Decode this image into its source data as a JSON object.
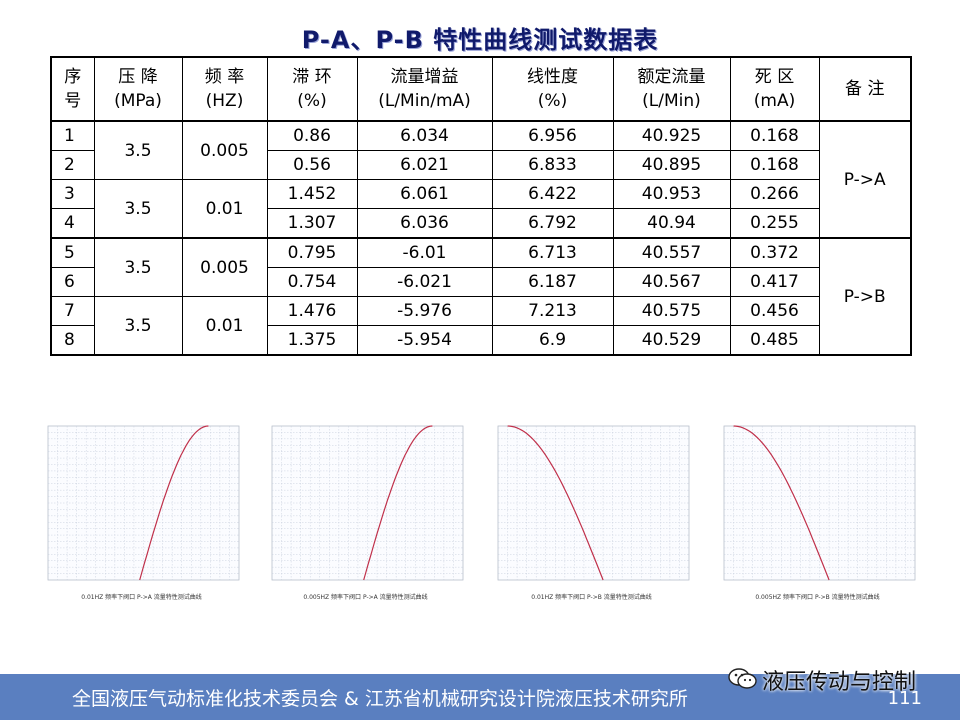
{
  "title": "P-A、P-B 特性曲线测试数据表",
  "table": {
    "headers": [
      {
        "line1": "序",
        "line2": "号"
      },
      {
        "line1": "压 降",
        "line2": "(MPa)"
      },
      {
        "line1": "频 率",
        "line2": "(HZ)"
      },
      {
        "line1": "滞 环",
        "line2": "(%)"
      },
      {
        "line1": "流量增益",
        "line2": "(L/Min/mA)"
      },
      {
        "line1": "线性度",
        "line2": "(%)"
      },
      {
        "line1": "额定流量",
        "line2": "(L/Min)"
      },
      {
        "line1": "死 区",
        "line2": "(mA)"
      },
      {
        "line1": "备 注",
        "line2": ""
      }
    ],
    "groups": [
      {
        "pressure": "3.5",
        "frequency": "0.005"
      },
      {
        "pressure": "3.5",
        "frequency": "0.01"
      },
      {
        "pressure": "3.5",
        "frequency": "0.005"
      },
      {
        "pressure": "3.5",
        "frequency": "0.01"
      }
    ],
    "remarks": [
      "P->A",
      "P->B"
    ],
    "rows": [
      {
        "seq": "1",
        "hysteresis": "0.86",
        "gain": "6.034",
        "linearity": "6.956",
        "rated_flow": "40.925",
        "dead_zone": "0.168"
      },
      {
        "seq": "2",
        "hysteresis": "0.56",
        "gain": "6.021",
        "linearity": "6.833",
        "rated_flow": "40.895",
        "dead_zone": "0.168"
      },
      {
        "seq": "3",
        "hysteresis": "1.452",
        "gain": "6.061",
        "linearity": "6.422",
        "rated_flow": "40.953",
        "dead_zone": "0.266"
      },
      {
        "seq": "4",
        "hysteresis": "1.307",
        "gain": "6.036",
        "linearity": "6.792",
        "rated_flow": "40.94",
        "dead_zone": "0.255"
      },
      {
        "seq": "5",
        "hysteresis": "0.795",
        "gain": "-6.01",
        "linearity": "6.713",
        "rated_flow": "40.557",
        "dead_zone": "0.372"
      },
      {
        "seq": "6",
        "hysteresis": "0.754",
        "gain": "-6.021",
        "linearity": "6.187",
        "rated_flow": "40.567",
        "dead_zone": "0.417"
      },
      {
        "seq": "7",
        "hysteresis": "1.476",
        "gain": "-5.976",
        "linearity": "7.213",
        "rated_flow": "40.575",
        "dead_zone": "0.456"
      },
      {
        "seq": "8",
        "hysteresis": "1.375",
        "gain": "-5.954",
        "linearity": "6.9",
        "rated_flow": "40.529",
        "dead_zone": "0.485"
      }
    ]
  },
  "chart_data": [
    {
      "type": "line",
      "direction": "rising",
      "title": "0.01HZ 频率下阀口 P->A 流量特性测试曲线",
      "ylim": [
        0,
        40
      ],
      "grid": true,
      "line_color": "#c0304a"
    },
    {
      "type": "line",
      "direction": "rising",
      "title": "0.005HZ 频率下阀口 P->A 流量特性测试曲线",
      "ylim": [
        0,
        40
      ],
      "grid": true,
      "line_color": "#c0304a"
    },
    {
      "type": "line",
      "direction": "falling",
      "title": "0.01HZ 频率下阀口 P->B 流量特性测试曲线",
      "ylim": [
        0,
        40
      ],
      "grid": true,
      "line_color": "#c0304a"
    },
    {
      "type": "line",
      "direction": "falling",
      "title": "0.005HZ 频率下阀口 P->B 流量特性测试曲线",
      "ylim": [
        0,
        40
      ],
      "grid": true,
      "line_color": "#c0304a"
    }
  ],
  "footer": {
    "organization": "全国液压气动标准化技术委员会  &  江苏省机械研究设计院液压技术研究所",
    "page_number": "111"
  },
  "watermark": {
    "text": "液压传动与控制",
    "icon": "wechat-icon"
  }
}
